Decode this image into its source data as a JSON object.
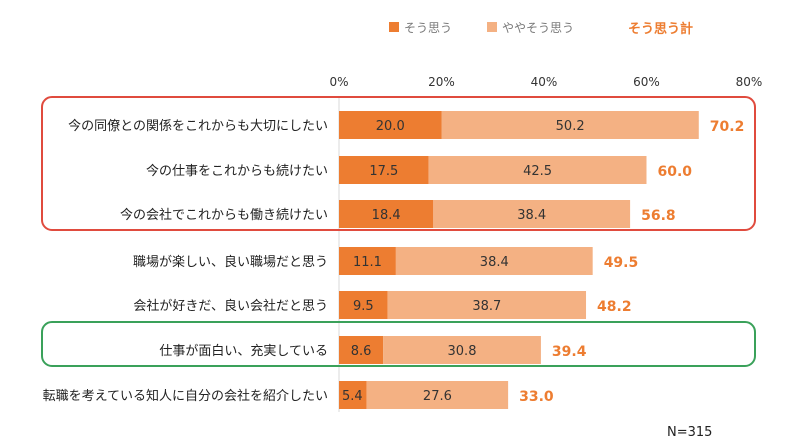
{
  "chart_data": {
    "type": "bar",
    "orientation": "horizontal",
    "stacked": true,
    "categories": [
      "今の同僚との関係をこれからも大切にしたい",
      "今の仕事をこれからも続けたい",
      "今の会社でこれからも働き続けたい",
      "職場が楽しい、良い職場だと思う",
      "会社が好きだ、良い会社だと思う",
      "仕事が面白い、充実している",
      "転職を考えている知人に自分の会社を紹介したい"
    ],
    "series": [
      {
        "name": "そう思う",
        "color": "#ED7D31",
        "values": [
          20.0,
          17.5,
          18.4,
          11.1,
          9.5,
          8.6,
          5.4
        ]
      },
      {
        "name": "ややそう思う",
        "color": "#F4B183",
        "values": [
          50.2,
          42.5,
          38.4,
          38.4,
          38.7,
          30.8,
          27.6
        ]
      }
    ],
    "totals": {
      "name": "そう思う計",
      "color": "#ED7D31",
      "values": [
        70.2,
        60.0,
        56.8,
        49.5,
        48.2,
        39.4,
        33.0
      ]
    },
    "xlim": [
      0,
      80
    ],
    "x_ticks": [
      "0%",
      "20%",
      "40%",
      "60%",
      "80%"
    ],
    "legend_position": "top-right",
    "grid": false,
    "note": "N=315",
    "highlight_boxes": [
      {
        "rows": [
          0,
          1,
          2
        ],
        "color": "#E04B3E"
      },
      {
        "rows": [
          5
        ],
        "color": "#3AA15A"
      }
    ]
  }
}
